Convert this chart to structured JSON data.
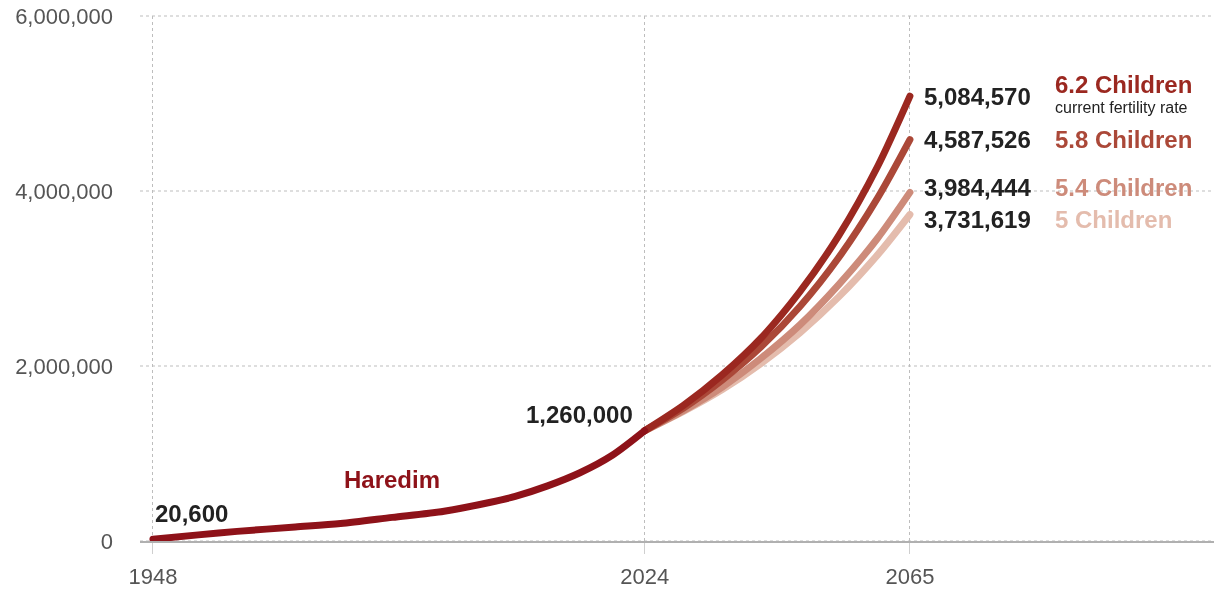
{
  "chart_data": {
    "type": "line",
    "series": [
      {
        "name": "Haredim",
        "color": "#8e1219",
        "x": [
          1948,
          1955,
          1961,
          1970,
          1977,
          1985,
          1993,
          2000,
          2004,
          2009,
          2014,
          2019,
          2024
        ],
        "values": [
          20600,
          70000,
          110000,
          160000,
          200000,
          270000,
          340000,
          440000,
          510000,
          630000,
          780000,
          980000,
          1260000
        ],
        "value_labels": [
          "20,600",
          null,
          null,
          null,
          null,
          null,
          null,
          null,
          null,
          null,
          null,
          null,
          "1,260,000"
        ]
      },
      {
        "name": "6.2 Children",
        "color": "#9b2820",
        "x": [
          2024,
          2030,
          2036,
          2042,
          2048,
          2054,
          2060,
          2065
        ],
        "values": [
          1260000,
          1550000,
          1900000,
          2320000,
          2850000,
          3490000,
          4280000,
          5084570
        ],
        "value_labels": [
          null,
          null,
          null,
          null,
          null,
          null,
          null,
          "5,084,570"
        ]
      },
      {
        "name": "5.8 Children",
        "color": "#ab4838",
        "x": [
          2024,
          2030,
          2036,
          2042,
          2048,
          2054,
          2060,
          2065
        ],
        "values": [
          1260000,
          1520000,
          1840000,
          2220000,
          2680000,
          3240000,
          3920000,
          4587526
        ],
        "value_labels": [
          null,
          null,
          null,
          null,
          null,
          null,
          null,
          "4,587,526"
        ]
      },
      {
        "name": "5.4 Children",
        "color": "#cd8b7a",
        "x": [
          2024,
          2030,
          2036,
          2042,
          2048,
          2054,
          2060,
          2065
        ],
        "values": [
          1260000,
          1490000,
          1760000,
          2090000,
          2470000,
          2930000,
          3460000,
          3984444
        ],
        "value_labels": [
          null,
          null,
          null,
          null,
          null,
          null,
          null,
          "3,984,444"
        ]
      },
      {
        "name": "5 Children",
        "color": "#e4bcad",
        "x": [
          2024,
          2030,
          2036,
          2042,
          2048,
          2054,
          2060,
          2065
        ],
        "values": [
          1260000,
          1480000,
          1730000,
          2030000,
          2380000,
          2790000,
          3270000,
          3731619
        ],
        "value_labels": [
          null,
          null,
          null,
          null,
          null,
          null,
          null,
          "3,731,619"
        ]
      }
    ],
    "annotations": [
      "current fertility rate"
    ],
    "xlim": [
      1946,
      2112
    ],
    "xticks": [
      1948,
      2024,
      2065
    ],
    "ylim": [
      0,
      6000000
    ],
    "yticks": [
      0,
      {
        "value": 2000000,
        "label": "2,000,000"
      },
      {
        "value": 4000000,
        "label": "4,000,000"
      },
      {
        "value": 6000000,
        "label": "6,000,000"
      }
    ],
    "grid": true
  }
}
